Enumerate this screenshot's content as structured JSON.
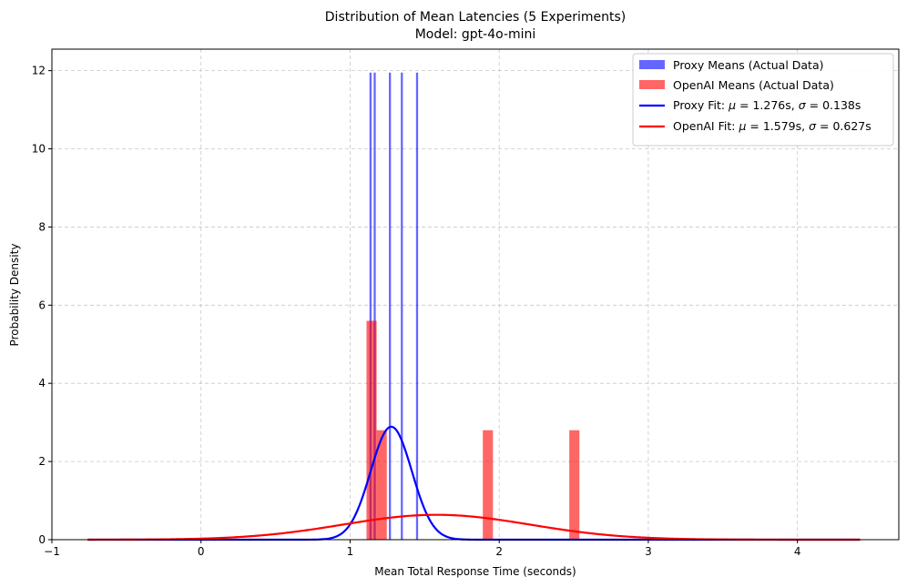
{
  "chart_data": {
    "type": "histogram",
    "title": "Distribution of Mean Latencies (5 Experiments)",
    "subtitle": "Model: gpt-4o-mini",
    "xlabel": "Mean Total Response Time (seconds)",
    "ylabel": "Probability Density",
    "xlim": [
      -1.0,
      4.68
    ],
    "ylim": [
      0,
      12.55
    ],
    "xticks": [
      -1,
      0,
      1,
      2,
      3,
      4
    ],
    "yticks": [
      0,
      2,
      4,
      6,
      8,
      10,
      12
    ],
    "grid": true,
    "legend_position": "top-right",
    "histograms": [
      {
        "name": "Proxy Means (Actual Data)",
        "color": "#0000ff",
        "opacity": 0.6,
        "bins": [
          {
            "x0": 1.13,
            "x1": 1.144,
            "density": 11.95
          },
          {
            "x0": 1.158,
            "x1": 1.172,
            "density": 11.95
          },
          {
            "x0": 1.26,
            "x1": 1.274,
            "density": 11.95
          },
          {
            "x0": 1.34,
            "x1": 1.354,
            "density": 11.95
          },
          {
            "x0": 1.442,
            "x1": 1.456,
            "density": 11.95
          }
        ]
      },
      {
        "name": "OpenAI Means (Actual Data)",
        "color": "#ff0000",
        "opacity": 0.6,
        "bins": [
          {
            "x0": 1.11,
            "x1": 1.178,
            "density": 5.6
          },
          {
            "x0": 1.178,
            "x1": 1.246,
            "density": 2.8
          },
          {
            "x0": 1.89,
            "x1": 1.958,
            "density": 2.8
          },
          {
            "x0": 2.47,
            "x1": 2.538,
            "density": 2.8
          }
        ]
      }
    ],
    "fits": [
      {
        "name": "Proxy Fit: μ = 1.276s, σ = 0.138s",
        "label_prefix": "Proxy Fit: ",
        "mu_label": "μ",
        "sigma_label": "σ",
        "mu_value": "1.276s",
        "sigma_value": "0.138s",
        "color": "#0000ff",
        "mu": 1.276,
        "sigma": 0.138
      },
      {
        "name": "OpenAI Fit: μ = 1.579s, σ = 0.627s",
        "label_prefix": "OpenAI Fit: ",
        "mu_label": "μ",
        "sigma_label": "σ",
        "mu_value": "1.579s",
        "sigma_value": "0.627s",
        "color": "#ff0000",
        "mu": 1.579,
        "sigma": 0.627
      }
    ],
    "fit_range": [
      -0.76,
      4.42
    ]
  }
}
